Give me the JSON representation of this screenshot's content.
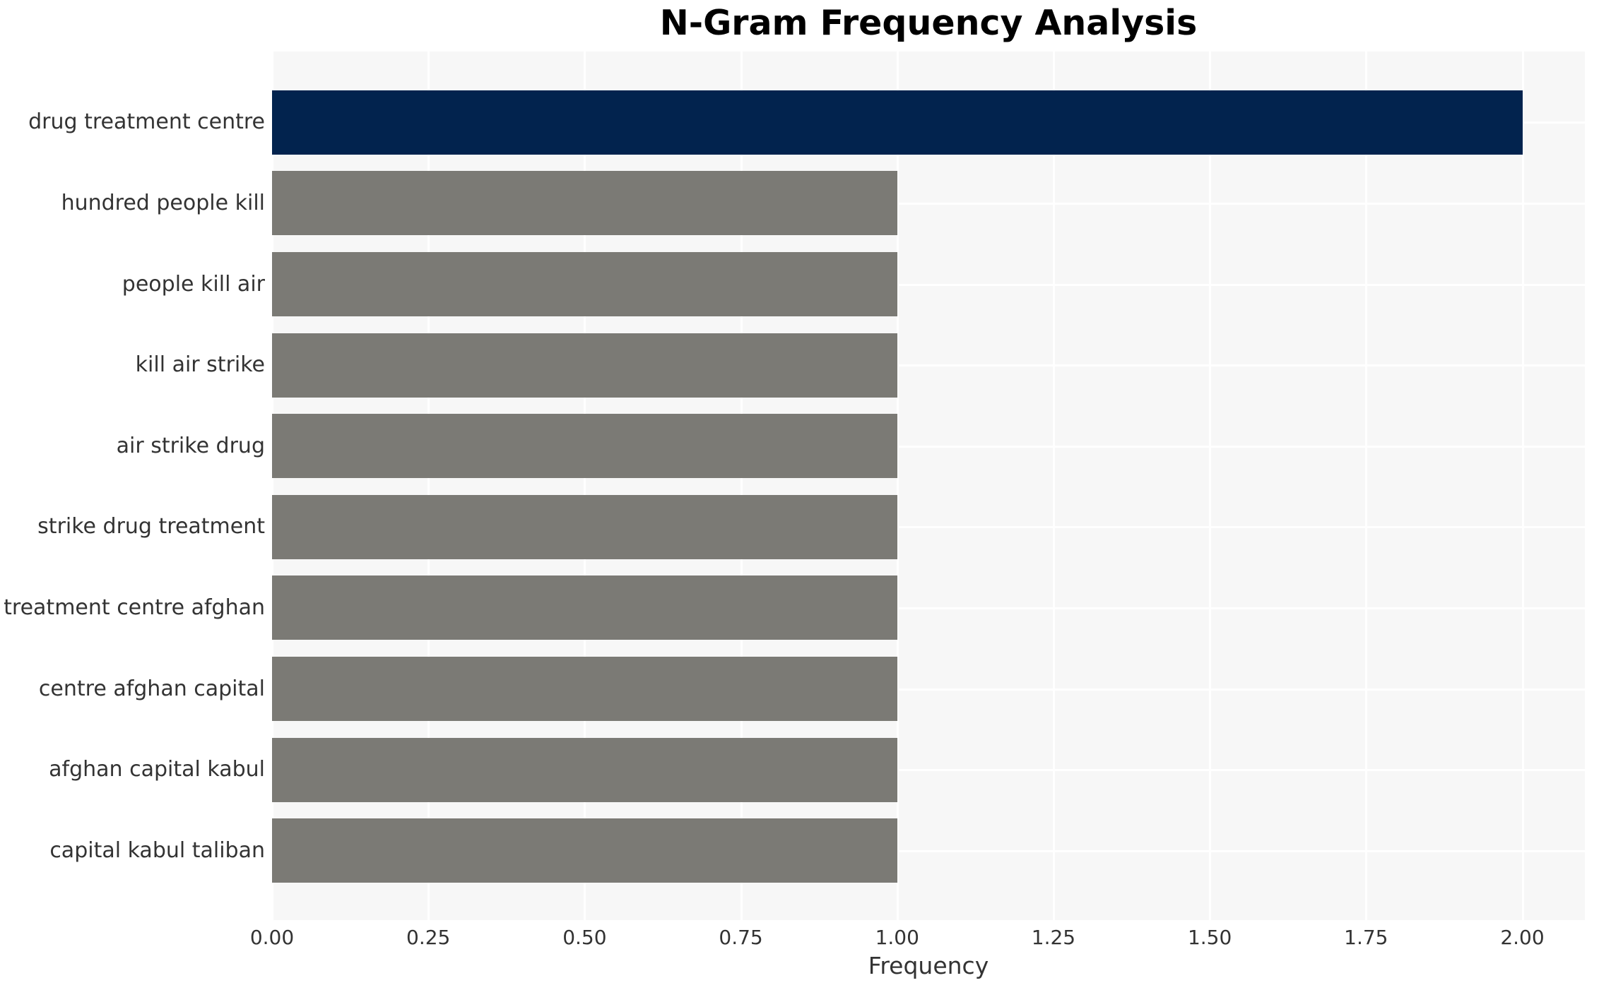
{
  "chart_data": {
    "type": "bar",
    "orientation": "horizontal",
    "title": "N-Gram Frequency Analysis",
    "xlabel": "Frequency",
    "ylabel": "",
    "categories": [
      "drug treatment centre",
      "hundred people kill",
      "people kill air",
      "kill air strike",
      "air strike drug",
      "strike drug treatment",
      "treatment centre afghan",
      "centre afghan capital",
      "afghan capital kabul",
      "capital kabul taliban"
    ],
    "values": [
      2,
      1,
      1,
      1,
      1,
      1,
      1,
      1,
      1,
      1
    ],
    "xlim": [
      0,
      2.1
    ],
    "xtick_values": [
      0,
      0.25,
      0.5,
      0.75,
      1.0,
      1.25,
      1.5,
      1.75,
      2.0
    ],
    "xtick_labels": [
      "0.00",
      "0.25",
      "0.50",
      "0.75",
      "1.00",
      "1.25",
      "1.50",
      "1.75",
      "2.00"
    ],
    "grid": true,
    "legend": false,
    "colors": {
      "highlight_bar": "#02234e",
      "default_bar": "#7b7a75",
      "bar_colors": [
        "#02234e",
        "#7b7a75",
        "#7b7a75",
        "#7b7a75",
        "#7b7a75",
        "#7b7a75",
        "#7b7a75",
        "#7b7a75",
        "#7b7a75",
        "#7b7a75"
      ],
      "plot_background": "#f7f7f7",
      "gridline": "#ffffff",
      "text": "#333333",
      "title_text": "#000000"
    }
  }
}
